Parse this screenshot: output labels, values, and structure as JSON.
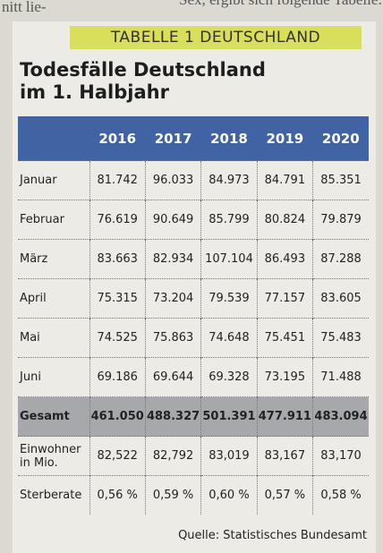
{
  "background": {
    "fragments": [
      "nitt lie-",
      "Sex, ergibt sich folgende Tabelle:"
    ]
  },
  "label": "TABELLE 1 DEUTSCHLAND",
  "title": [
    "Todesfälle Deutschland",
    "im 1. Halbjahr"
  ],
  "table": {
    "header": [
      "2016",
      "2017",
      "2018",
      "2019",
      "2020"
    ],
    "rows": [
      [
        "Januar",
        "81.742",
        "96.033",
        "84.973",
        "84.791",
        "85.351"
      ],
      [
        "Februar",
        "76.619",
        "90.649",
        "85.799",
        "80.824",
        "79.879"
      ],
      [
        "März",
        "83.663",
        "82.934",
        "107.104",
        "86.493",
        "87.288"
      ],
      [
        "April",
        "75.315",
        "73.204",
        "79.539",
        "77.157",
        "83.605"
      ],
      [
        "Mai",
        "74.525",
        "75.863",
        "74.648",
        "75.451",
        "75.483"
      ],
      [
        "Juni",
        "69.186",
        "69.644",
        "69.328",
        "73.195",
        "71.488"
      ],
      [
        "Gesamt",
        "461.050",
        "488.327",
        "501.391",
        "477.911",
        "483.094"
      ],
      [
        "Einwohner in Mio.",
        "82,522",
        "82,792",
        "83,019",
        "83,167",
        "83,170"
      ],
      [
        "Sterberate",
        "0,56 %",
        "0,59 %",
        "0,60 %",
        "0,57 %",
        "0,58 %"
      ]
    ]
  },
  "source": "Quelle: Statistisches Bundesamt"
}
